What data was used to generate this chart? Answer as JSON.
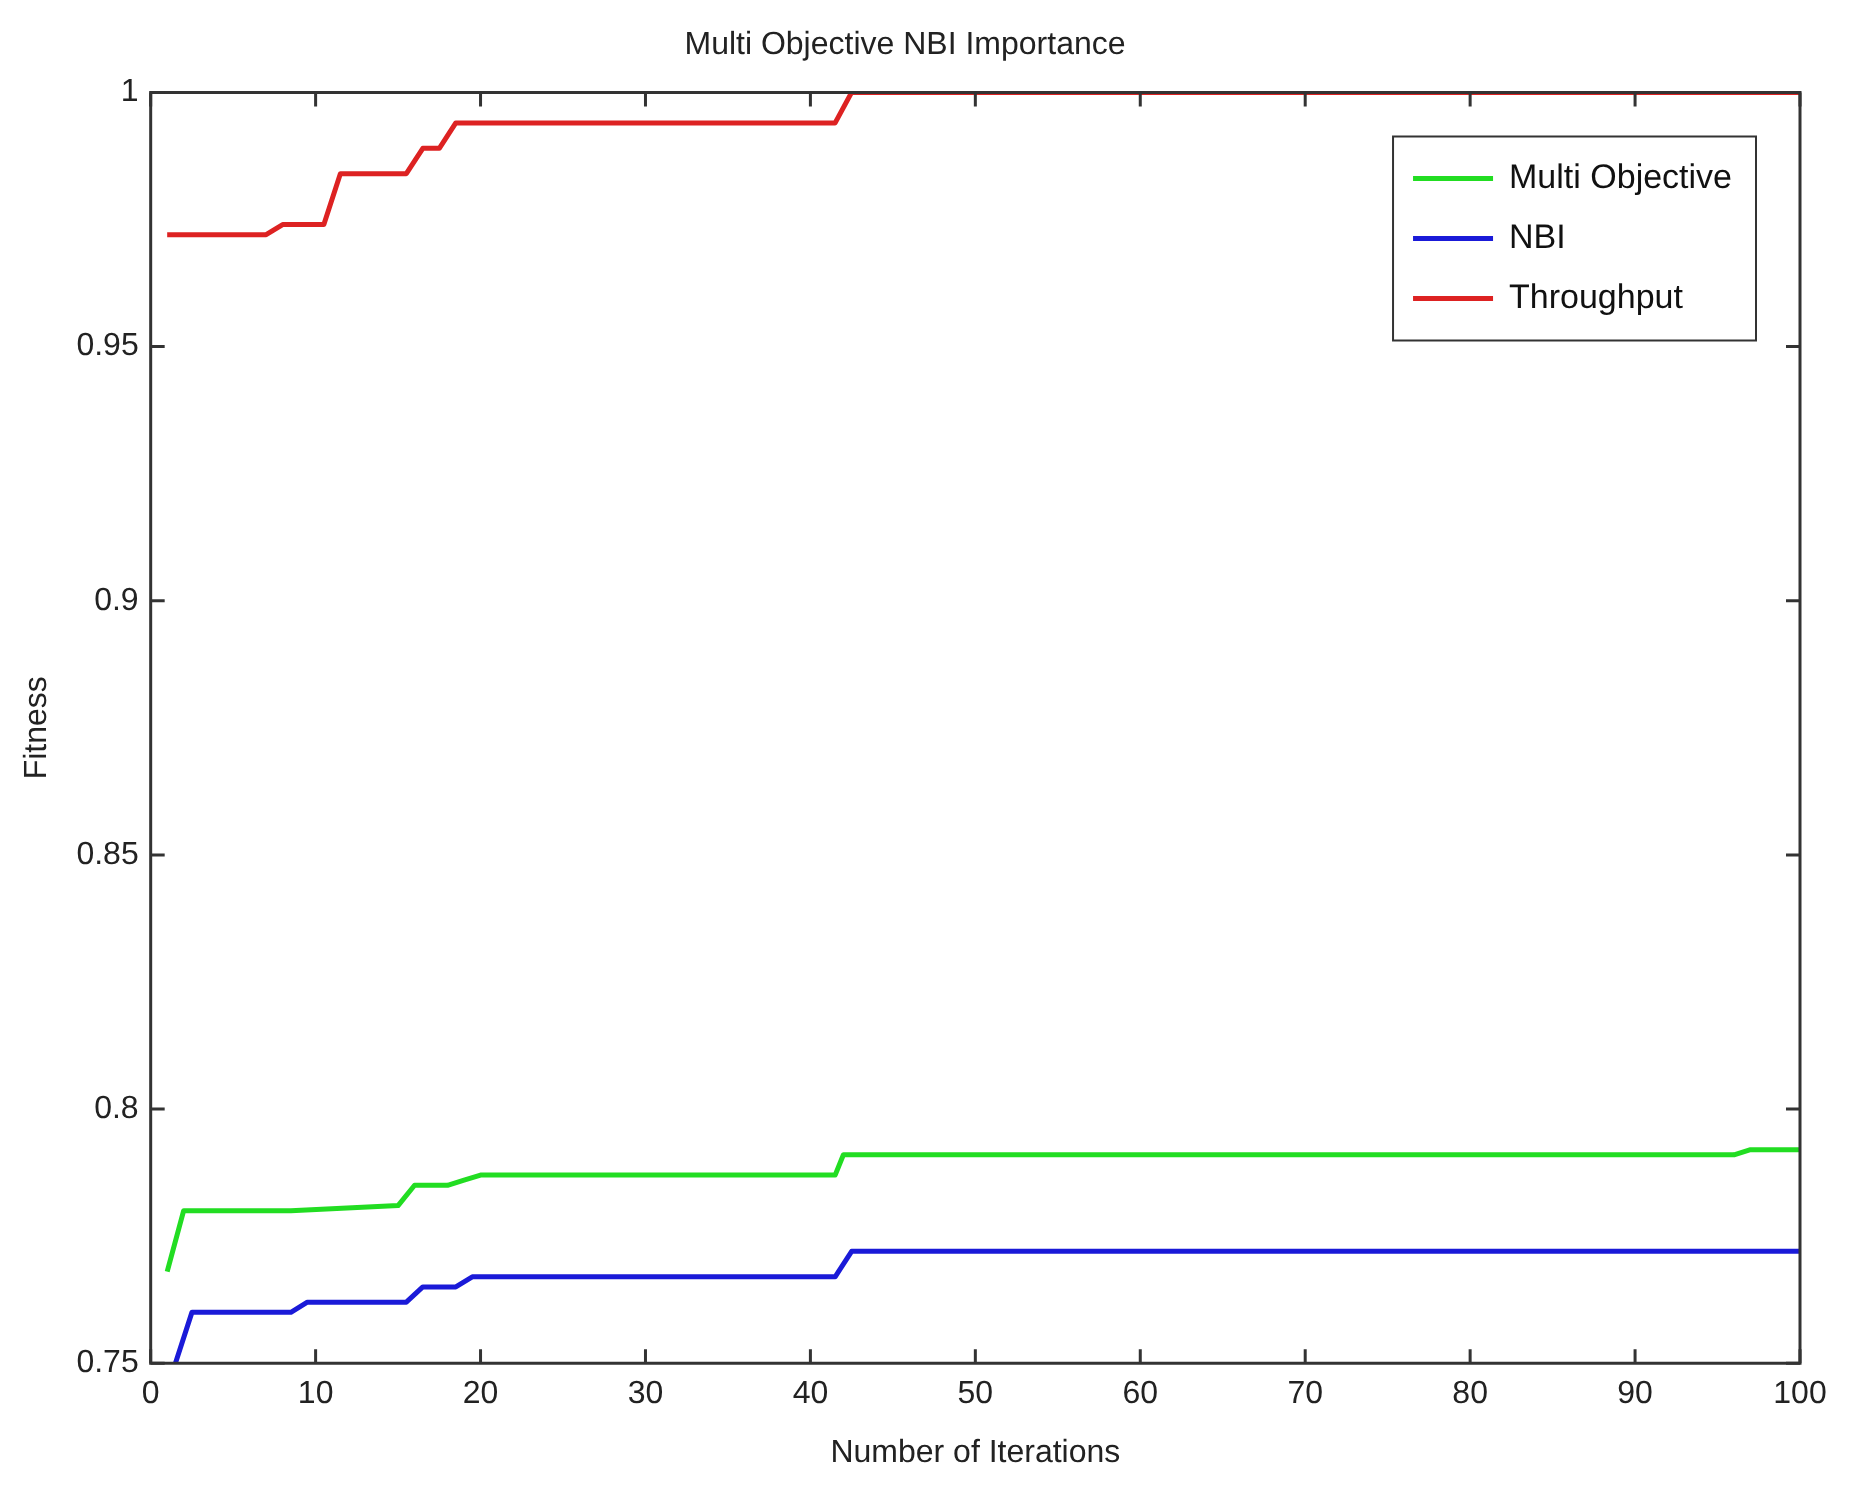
{
  "chart_data": {
    "type": "line",
    "title": "Multi Objective NBI Importance",
    "xlabel": "Number of Iterations",
    "ylabel": "Fitness",
    "xlim": [
      0,
      100
    ],
    "ylim": [
      0.75,
      1
    ],
    "xticks": [
      0,
      10,
      20,
      30,
      40,
      50,
      60,
      70,
      80,
      90,
      100
    ],
    "yticks": [
      0.75,
      0.8,
      0.85,
      0.9,
      0.95,
      1
    ],
    "grid": false,
    "legend": "top right",
    "marker": "none",
    "line_style": "solid",
    "series": [
      {
        "name": "Multi Objective",
        "color": "#22dd22",
        "x": [
          1,
          2,
          8,
          8.5,
          15,
          16,
          18,
          19,
          20,
          41.5,
          42,
          96,
          97,
          100
        ],
        "values": [
          0.768,
          0.78,
          0.78,
          0.78,
          0.781,
          0.785,
          0.785,
          0.786,
          0.787,
          0.787,
          0.791,
          0.791,
          0.792,
          0.792
        ]
      },
      {
        "name": "NBI",
        "color": "#1a1ad8",
        "x": [
          1.5,
          2.5,
          8.5,
          9.5,
          15.5,
          16.5,
          18.5,
          19.5,
          41.5,
          42.5,
          100
        ],
        "values": [
          0.75,
          0.76,
          0.76,
          0.762,
          0.762,
          0.765,
          0.765,
          0.767,
          0.767,
          0.772,
          0.772
        ]
      },
      {
        "name": "Throughput",
        "color": "#dd2222",
        "x": [
          1,
          7,
          8,
          10.5,
          11.5,
          15.5,
          16.5,
          17.5,
          18.5,
          41.5,
          42.5,
          100
        ],
        "values": [
          0.972,
          0.972,
          0.974,
          0.974,
          0.984,
          0.984,
          0.989,
          0.989,
          0.994,
          0.994,
          1,
          1
        ]
      }
    ]
  }
}
